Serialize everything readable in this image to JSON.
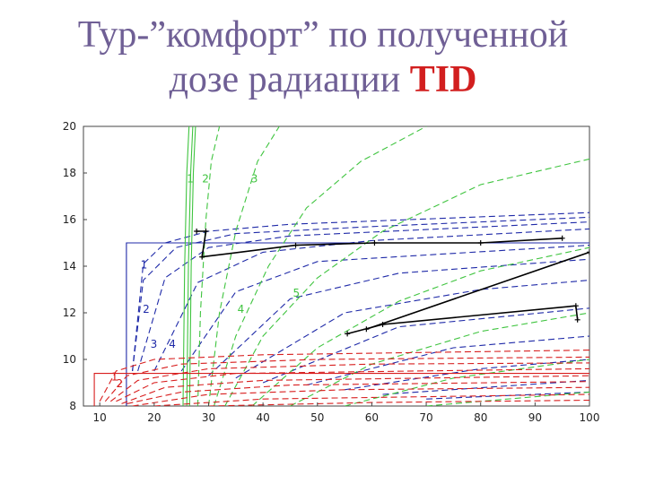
{
  "title": {
    "line1": "Тур-”комфорт” по полученной",
    "line2_prefix": "дозе радиации",
    "line2_highlight": "TID"
  },
  "colors": {
    "text": "#6f5f95",
    "highlight": "#d21f1f",
    "blue": "#1f2aa8",
    "green": "#3fc43f",
    "red": "#d81e1e",
    "black": "#000000"
  },
  "chart_data": {
    "type": "line",
    "xlim": [
      7,
      100
    ],
    "ylim": [
      8,
      20
    ],
    "xticks": [
      10,
      20,
      30,
      40,
      50,
      60,
      70,
      80,
      90,
      100
    ],
    "yticks": [
      8,
      10,
      12,
      14,
      16,
      18,
      20
    ],
    "grid": false,
    "legend": "none",
    "curve_labels": [
      {
        "text": "1",
        "x": 26.0,
        "y": 17.6,
        "color": "green"
      },
      {
        "text": "2",
        "x": 28.8,
        "y": 17.6,
        "color": "green"
      },
      {
        "text": "3",
        "x": 37.8,
        "y": 17.6,
        "color": "green"
      },
      {
        "text": "4",
        "x": 35.3,
        "y": 12.0,
        "color": "green"
      },
      {
        "text": "5",
        "x": 45.5,
        "y": 12.7,
        "color": "green"
      },
      {
        "text": "1",
        "x": 17.5,
        "y": 13.9,
        "color": "blue"
      },
      {
        "text": "2",
        "x": 17.9,
        "y": 12.0,
        "color": "blue"
      },
      {
        "text": "3",
        "x": 19.3,
        "y": 10.5,
        "color": "blue"
      },
      {
        "text": "4",
        "x": 22.7,
        "y": 10.5,
        "color": "blue"
      },
      {
        "text": "1",
        "x": 12.1,
        "y": 9.1,
        "color": "red"
      },
      {
        "text": "2",
        "x": 13.0,
        "y": 8.8,
        "color": "red"
      }
    ],
    "series": [
      {
        "color": "blue",
        "style": "solid",
        "points": [
          [
            14.9,
            8
          ],
          [
            14.9,
            15.0
          ],
          [
            100,
            15.0
          ]
        ]
      },
      {
        "color": "blue",
        "style": "dashed",
        "points": [
          [
            16,
            9.5
          ],
          [
            18,
            14.1
          ],
          [
            22,
            15.0
          ],
          [
            30,
            15.5
          ],
          [
            45,
            15.8
          ],
          [
            100,
            16.3
          ]
        ]
      },
      {
        "color": "blue",
        "style": "dashed",
        "points": [
          [
            16,
            9.5
          ],
          [
            18,
            13.4
          ],
          [
            24,
            14.8
          ],
          [
            35,
            15.4
          ],
          [
            60,
            15.7
          ],
          [
            100,
            16.1
          ]
        ]
      },
      {
        "color": "blue",
        "style": "dashed",
        "points": [
          [
            17,
            9.5
          ],
          [
            22,
            13.5
          ],
          [
            30,
            14.8
          ],
          [
            45,
            15.3
          ],
          [
            100,
            15.9
          ]
        ]
      },
      {
        "color": "blue",
        "style": "dashed",
        "points": [
          [
            20,
            9.5
          ],
          [
            28,
            13.3
          ],
          [
            40,
            14.6
          ],
          [
            60,
            15.1
          ],
          [
            100,
            15.6
          ]
        ]
      },
      {
        "color": "blue",
        "style": "dashed",
        "points": [
          [
            25,
            9.5
          ],
          [
            35,
            12.9
          ],
          [
            50,
            14.2
          ],
          [
            100,
            14.9
          ]
        ]
      },
      {
        "color": "blue",
        "style": "dashed",
        "points": [
          [
            30,
            9.3
          ],
          [
            45,
            12.6
          ],
          [
            65,
            13.7
          ],
          [
            100,
            14.3
          ]
        ]
      },
      {
        "color": "blue",
        "style": "dashed",
        "points": [
          [
            35,
            9.2
          ],
          [
            55,
            12.0
          ],
          [
            80,
            13.0
          ],
          [
            100,
            13.4
          ]
        ]
      },
      {
        "color": "blue",
        "style": "dashed",
        "points": [
          [
            40,
            9.0
          ],
          [
            65,
            11.4
          ],
          [
            100,
            12.2
          ]
        ]
      },
      {
        "color": "blue",
        "style": "dashed",
        "points": [
          [
            48,
            8.9
          ],
          [
            75,
            10.5
          ],
          [
            100,
            11.0
          ]
        ]
      },
      {
        "color": "blue",
        "style": "dashed",
        "points": [
          [
            55,
            8.7
          ],
          [
            80,
            9.6
          ],
          [
            100,
            10.0
          ]
        ]
      },
      {
        "color": "blue",
        "style": "dashed",
        "points": [
          [
            62,
            8.5
          ],
          [
            100,
            9.1
          ]
        ]
      },
      {
        "color": "blue",
        "style": "dashed",
        "points": [
          [
            70,
            8.3
          ],
          [
            100,
            8.6
          ]
        ]
      },
      {
        "color": "green",
        "style": "solid",
        "points": [
          [
            25.3,
            8
          ],
          [
            25.6,
            14
          ],
          [
            26.0,
            18
          ],
          [
            26.4,
            20
          ]
        ]
      },
      {
        "color": "green",
        "style": "solid",
        "points": [
          [
            26.0,
            8
          ],
          [
            26.3,
            14
          ],
          [
            26.7,
            18
          ],
          [
            27.1,
            20
          ]
        ]
      },
      {
        "color": "green",
        "style": "solid",
        "points": [
          [
            26.5,
            8
          ],
          [
            26.8,
            14
          ],
          [
            27.2,
            18
          ],
          [
            27.6,
            20
          ]
        ]
      },
      {
        "color": "green",
        "style": "dashed",
        "points": [
          [
            28,
            8
          ],
          [
            28.5,
            12
          ],
          [
            29.5,
            16
          ],
          [
            30.5,
            18.5
          ],
          [
            32,
            20
          ]
        ]
      },
      {
        "color": "green",
        "style": "dashed",
        "points": [
          [
            30,
            8
          ],
          [
            32,
            12
          ],
          [
            35,
            15.5
          ],
          [
            39,
            18.5
          ],
          [
            43,
            20
          ]
        ]
      },
      {
        "color": "green",
        "style": "dashed",
        "points": [
          [
            31,
            8
          ],
          [
            35,
            11
          ],
          [
            41,
            14
          ],
          [
            48,
            16.5
          ],
          [
            58,
            18.5
          ],
          [
            70,
            20
          ]
        ]
      },
      {
        "color": "green",
        "style": "dashed",
        "points": [
          [
            33,
            8
          ],
          [
            40,
            11
          ],
          [
            50,
            13.5
          ],
          [
            62,
            15.5
          ],
          [
            80,
            17.5
          ],
          [
            100,
            18.6
          ]
        ]
      },
      {
        "color": "green",
        "style": "dashed",
        "points": [
          [
            38,
            8
          ],
          [
            50,
            10.5
          ],
          [
            65,
            12.5
          ],
          [
            80,
            13.8
          ],
          [
            100,
            14.8
          ]
        ]
      },
      {
        "color": "green",
        "style": "dashed",
        "points": [
          [
            45,
            8
          ],
          [
            60,
            9.8
          ],
          [
            80,
            11.2
          ],
          [
            100,
            12.0
          ]
        ]
      },
      {
        "color": "green",
        "style": "dashed",
        "points": [
          [
            55,
            8
          ],
          [
            75,
            9.2
          ],
          [
            100,
            10.0
          ]
        ]
      },
      {
        "color": "green",
        "style": "dashed",
        "points": [
          [
            70,
            8
          ],
          [
            100,
            8.6
          ]
        ]
      },
      {
        "color": "red",
        "style": "solid",
        "points": [
          [
            9,
            8
          ],
          [
            9,
            9.4
          ],
          [
            100,
            9.4
          ]
        ]
      },
      {
        "color": "red",
        "style": "dashed",
        "points": [
          [
            10,
            8.2
          ],
          [
            13,
            9.5
          ],
          [
            20,
            10.0
          ],
          [
            40,
            10.2
          ],
          [
            100,
            10.4
          ]
        ]
      },
      {
        "color": "red",
        "style": "dashed",
        "points": [
          [
            11,
            8.2
          ],
          [
            15,
            9.3
          ],
          [
            25,
            9.8
          ],
          [
            50,
            10.0
          ],
          [
            100,
            10.1
          ]
        ]
      },
      {
        "color": "red",
        "style": "dashed",
        "points": [
          [
            12,
            8.2
          ],
          [
            17,
            9.1
          ],
          [
            30,
            9.6
          ],
          [
            60,
            9.8
          ],
          [
            100,
            9.85
          ]
        ]
      },
      {
        "color": "red",
        "style": "dashed",
        "points": [
          [
            13,
            8.2
          ],
          [
            20,
            9.0
          ],
          [
            35,
            9.4
          ],
          [
            100,
            9.6
          ]
        ]
      },
      {
        "color": "red",
        "style": "dashed",
        "points": [
          [
            14,
            8.1
          ],
          [
            22,
            8.8
          ],
          [
            40,
            9.1
          ],
          [
            100,
            9.3
          ]
        ]
      },
      {
        "color": "red",
        "style": "dashed",
        "points": [
          [
            15,
            8.1
          ],
          [
            25,
            8.6
          ],
          [
            45,
            8.9
          ],
          [
            100,
            9.05
          ]
        ]
      },
      {
        "color": "red",
        "style": "dashed",
        "points": [
          [
            16,
            8.0
          ],
          [
            30,
            8.5
          ],
          [
            55,
            8.7
          ],
          [
            100,
            8.8
          ]
        ]
      },
      {
        "color": "red",
        "style": "dashed",
        "points": [
          [
            20,
            8.0
          ],
          [
            40,
            8.3
          ],
          [
            100,
            8.5
          ]
        ]
      },
      {
        "color": "red",
        "style": "dashed",
        "points": [
          [
            30,
            8.0
          ],
          [
            60,
            8.15
          ],
          [
            100,
            8.25
          ]
        ]
      },
      {
        "color": "black",
        "style": "solid",
        "marker": "plus",
        "points": [
          [
            27.8,
            15.5
          ],
          [
            29.5,
            15.5
          ],
          [
            28.8,
            14.4
          ],
          [
            46,
            14.9
          ],
          [
            60.5,
            15.0
          ],
          [
            80,
            15.0
          ],
          [
            95,
            15.2
          ]
        ]
      },
      {
        "color": "black",
        "style": "solid",
        "marker": "plus",
        "points": [
          [
            55.5,
            11.1
          ],
          [
            62,
            11.5
          ],
          [
            97.5,
            12.3
          ],
          [
            97.8,
            11.7
          ]
        ]
      },
      {
        "color": "black",
        "style": "solid",
        "marker": "plus",
        "points": [
          [
            59,
            11.3
          ],
          [
            100,
            14.6
          ]
        ]
      }
    ]
  }
}
